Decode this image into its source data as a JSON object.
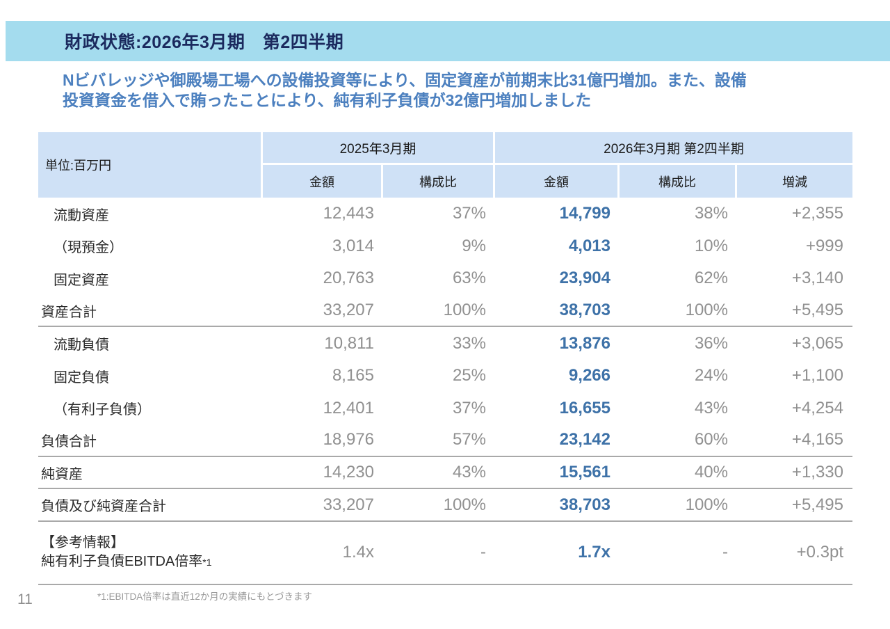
{
  "slide": {
    "title": "財政状態:2026年3月期　第2四半期",
    "subtitle_lines": [
      "Nビバレッジや御殿場工場への設備投資等により、固定資産が前期末比31億円増加。また、設備",
      "投資資金を借入で賄ったことにより、純有利子負債が32億円増加しました"
    ],
    "page_number": "11",
    "footnote": "*1:EBITDA倍率は直近12か月の実績にもとづきます"
  },
  "colors": {
    "banner_bg": "#a4dcee",
    "title_text": "#1b2a5e",
    "subtitle_text": "#4c80bf",
    "header_cell_bg": "#cfe1f6",
    "current_amount_text": "#3e72a8",
    "muted_number_text": "#909090",
    "section_line": "#a9a9a9"
  },
  "table": {
    "unit_label": "単位:百万円",
    "column_groups": [
      {
        "label": "2025年3月期",
        "columns": [
          "金額",
          "構成比"
        ]
      },
      {
        "label": "2026年3月期 第2四半期",
        "columns": [
          "金額",
          "構成比",
          "増減"
        ]
      }
    ],
    "rows": [
      {
        "label": "流動資産",
        "py_amount": "12,443",
        "py_ratio": "37%",
        "cq_amount": "14,799",
        "cq_ratio": "38%",
        "change": "+2,355"
      },
      {
        "label": "（現預金）",
        "py_amount": "3,014",
        "py_ratio": "9%",
        "cq_amount": "4,013",
        "cq_ratio": "10%",
        "change": "+999"
      },
      {
        "label": "固定資産",
        "py_amount": "20,763",
        "py_ratio": "63%",
        "cq_amount": "23,904",
        "cq_ratio": "62%",
        "change": "+3,140"
      },
      {
        "label": "資産合計",
        "py_amount": "33,207",
        "py_ratio": "100%",
        "cq_amount": "38,703",
        "cq_ratio": "100%",
        "change": "+5,495"
      },
      {
        "label": "流動負債",
        "py_amount": "10,811",
        "py_ratio": "33%",
        "cq_amount": "13,876",
        "cq_ratio": "36%",
        "change": "+3,065"
      },
      {
        "label": "固定負債",
        "py_amount": "8,165",
        "py_ratio": "25%",
        "cq_amount": "9,266",
        "cq_ratio": "24%",
        "change": "+1,100"
      },
      {
        "label": "（有利子負債）",
        "py_amount": "12,401",
        "py_ratio": "37%",
        "cq_amount": "16,655",
        "cq_ratio": "43%",
        "change": "+4,254"
      },
      {
        "label": "負債合計",
        "py_amount": "18,976",
        "py_ratio": "57%",
        "cq_amount": "23,142",
        "cq_ratio": "60%",
        "change": "+4,165"
      },
      {
        "label": "純資産",
        "py_amount": "14,230",
        "py_ratio": "43%",
        "cq_amount": "15,561",
        "cq_ratio": "40%",
        "change": "+1,330"
      },
      {
        "label": "負債及び純資産合計",
        "py_amount": "33,207",
        "py_ratio": "100%",
        "cq_amount": "38,703",
        "cq_ratio": "100%",
        "change": "+5,495"
      }
    ],
    "reference": {
      "label_line1": "【参考情報】",
      "label_line2": "純有利子負債EBITDA倍率",
      "note_marker": "*1",
      "py_amount": "1.4x",
      "py_ratio": "-",
      "cq_amount": "1.7x",
      "cq_ratio": "-",
      "change": "+0.3pt"
    }
  }
}
